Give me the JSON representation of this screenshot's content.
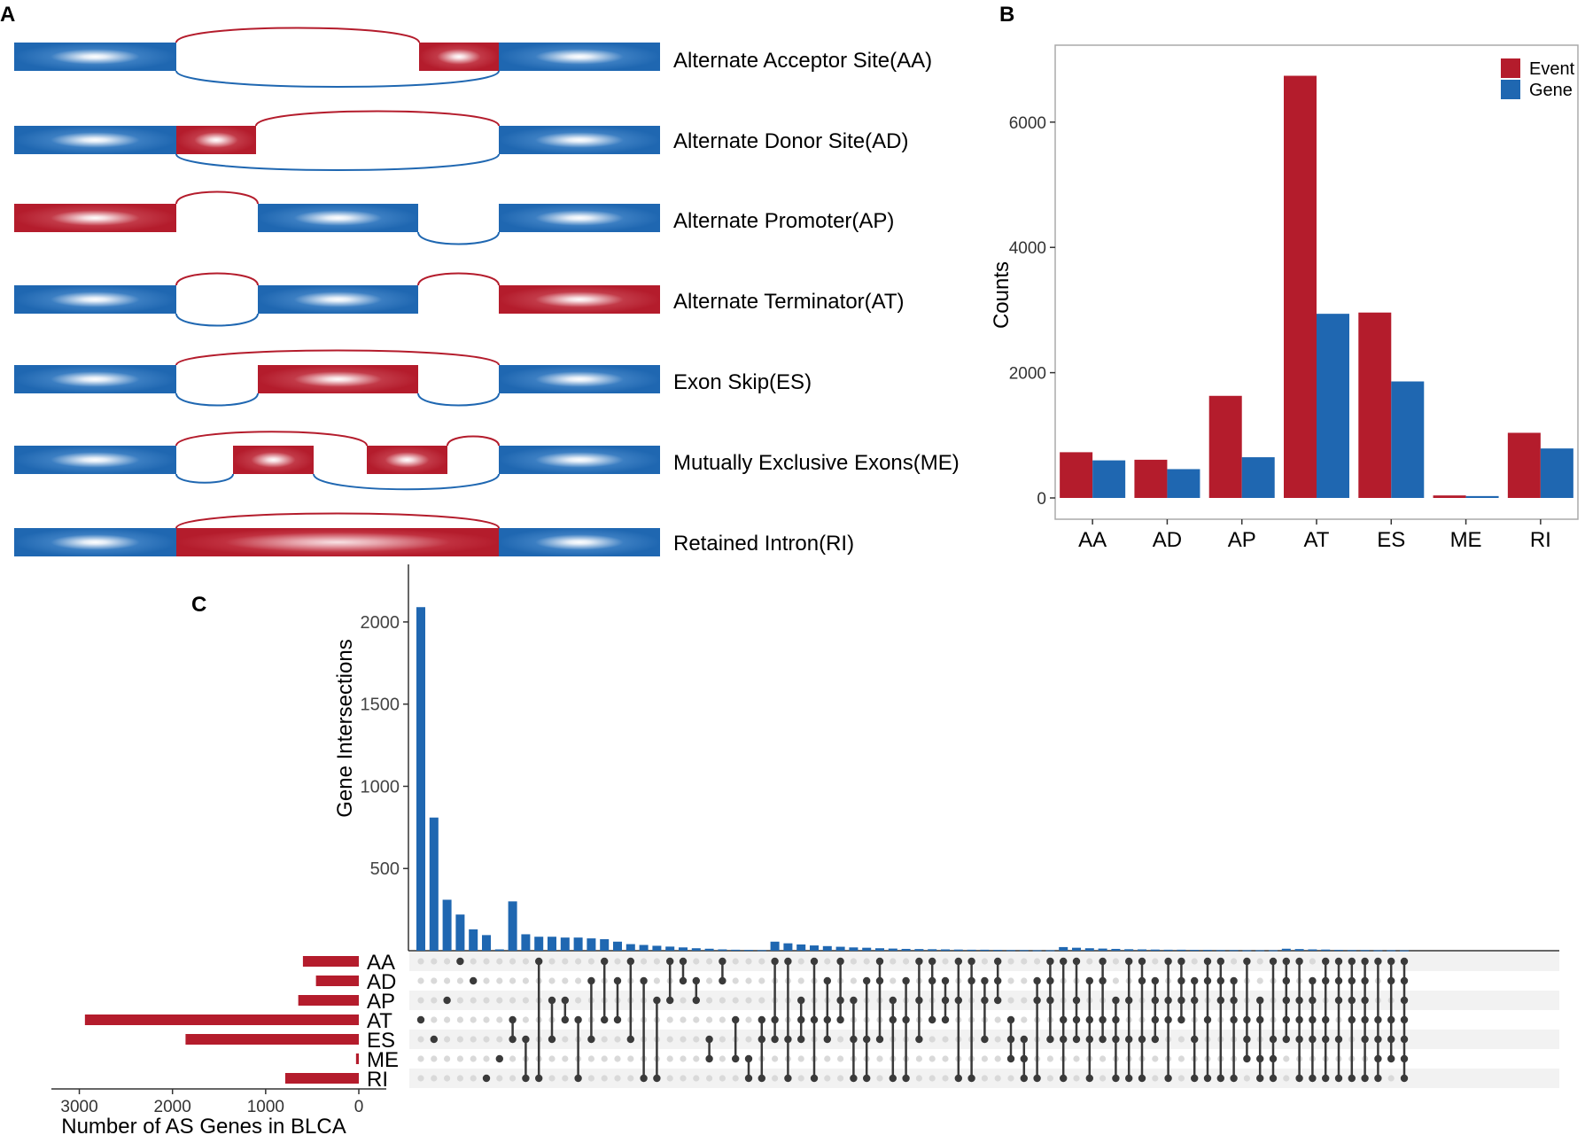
{
  "panel_labels": {
    "a": "A",
    "b": "B",
    "c": "C"
  },
  "colors": {
    "red": "#b41c2c",
    "blue": "#1f67b1",
    "dot_on": "#3a3a3a",
    "dot_off": "#d9d9d9",
    "stripe": "#f2f2f2",
    "axis": "#333333"
  },
  "panel_a": {
    "events": [
      {
        "label": "Alternate Acceptor Site(AA)"
      },
      {
        "label": "Alternate Donor Site(AD)"
      },
      {
        "label": "Alternate Promoter(AP)"
      },
      {
        "label": "Alternate Terminator(AT)"
      },
      {
        "label": "Exon Skip(ES)"
      },
      {
        "label": "Mutually Exclusive Exons(ME)"
      },
      {
        "label": "Retained Intron(RI)"
      }
    ]
  },
  "chart_data": [
    {
      "id": "B",
      "type": "bar",
      "categories": [
        "AA",
        "AD",
        "AP",
        "AT",
        "ES",
        "ME",
        "RI"
      ],
      "series": [
        {
          "name": "Event",
          "color": "#b41c2c",
          "values": [
            730,
            610,
            1630,
            6740,
            2960,
            40,
            1040
          ]
        },
        {
          "name": "Gene",
          "color": "#1f67b1",
          "values": [
            600,
            460,
            650,
            2940,
            1860,
            30,
            790
          ]
        }
      ],
      "ylabel": "Counts",
      "xlabel": "",
      "ylim": [
        0,
        7200
      ],
      "yticks": [
        0,
        2000,
        4000,
        6000
      ],
      "yticklabels": [
        "0",
        "2000",
        "4000",
        "6000"
      ],
      "legend": "top-right"
    },
    {
      "id": "C",
      "type": "upset",
      "sets": [
        "AA",
        "AD",
        "AP",
        "AT",
        "ES",
        "ME",
        "RI"
      ],
      "ylabel": "Gene Intersections",
      "yticks": [
        500,
        1000,
        1500,
        2000
      ],
      "yticklabels": [
        "500",
        "1000",
        "1500",
        "2000"
      ],
      "ylim": [
        0,
        2350
      ],
      "set_size_label": "Number of AS Genes in BLCA",
      "set_size_ticks": [
        3000,
        2000,
        1000,
        0
      ],
      "set_size_ticklabels": [
        "3000",
        "2000",
        "1000",
        "0"
      ],
      "set_size_max": 3300,
      "set_sizes": [
        600,
        460,
        650,
        2940,
        1860,
        30,
        790
      ],
      "intersections": [
        {
          "sets": [
            3
          ],
          "size": 2090
        },
        {
          "sets": [
            4
          ],
          "size": 810
        },
        {
          "sets": [
            2
          ],
          "size": 310
        },
        {
          "sets": [
            0
          ],
          "size": 220
        },
        {
          "sets": [
            1
          ],
          "size": 130
        },
        {
          "sets": [
            6
          ],
          "size": 95
        },
        {
          "sets": [
            5
          ],
          "size": 8
        },
        {
          "sets": [
            3,
            4
          ],
          "size": 300
        },
        {
          "sets": [
            4,
            6
          ],
          "size": 100
        },
        {
          "sets": [
            0,
            6
          ],
          "size": 85
        },
        {
          "sets": [
            2,
            4
          ],
          "size": 85
        },
        {
          "sets": [
            2,
            3
          ],
          "size": 80
        },
        {
          "sets": [
            3,
            6
          ],
          "size": 80
        },
        {
          "sets": [
            1,
            4
          ],
          "size": 75
        },
        {
          "sets": [
            0,
            3
          ],
          "size": 70
        },
        {
          "sets": [
            1,
            3
          ],
          "size": 55
        },
        {
          "sets": [
            0,
            4
          ],
          "size": 40
        },
        {
          "sets": [
            1,
            6
          ],
          "size": 35
        },
        {
          "sets": [
            2,
            6
          ],
          "size": 30
        },
        {
          "sets": [
            0,
            2
          ],
          "size": 25
        },
        {
          "sets": [
            0,
            1
          ],
          "size": 20
        },
        {
          "sets": [
            1,
            2
          ],
          "size": 15
        },
        {
          "sets": [
            4,
            5
          ],
          "size": 12
        },
        {
          "sets": [
            0,
            1
          ],
          "size": 8
        },
        {
          "sets": [
            3,
            5
          ],
          "size": 6
        },
        {
          "sets": [
            5,
            6
          ],
          "size": 5
        },
        {
          "sets": [
            3,
            4,
            6
          ],
          "size": 4
        },
        {
          "sets": [
            0,
            3,
            4
          ],
          "size": 55
        },
        {
          "sets": [
            0,
            4,
            6
          ],
          "size": 45
        },
        {
          "sets": [
            2,
            3,
            4
          ],
          "size": 38
        },
        {
          "sets": [
            0,
            3,
            6
          ],
          "size": 32
        },
        {
          "sets": [
            1,
            3,
            4
          ],
          "size": 28
        },
        {
          "sets": [
            0,
            2,
            3
          ],
          "size": 24
        },
        {
          "sets": [
            2,
            4,
            6
          ],
          "size": 20
        },
        {
          "sets": [
            1,
            4,
            6
          ],
          "size": 18
        },
        {
          "sets": [
            0,
            1,
            4
          ],
          "size": 15
        },
        {
          "sets": [
            2,
            3,
            6
          ],
          "size": 13
        },
        {
          "sets": [
            1,
            3,
            6
          ],
          "size": 11
        },
        {
          "sets": [
            0,
            2,
            4
          ],
          "size": 10
        },
        {
          "sets": [
            0,
            1,
            3
          ],
          "size": 9
        },
        {
          "sets": [
            1,
            2,
            3
          ],
          "size": 8
        },
        {
          "sets": [
            0,
            2,
            6
          ],
          "size": 7
        },
        {
          "sets": [
            0,
            1,
            6
          ],
          "size": 6
        },
        {
          "sets": [
            1,
            2,
            4
          ],
          "size": 6
        },
        {
          "sets": [
            0,
            1,
            2
          ],
          "size": 5
        },
        {
          "sets": [
            3,
            4,
            5
          ],
          "size": 4
        },
        {
          "sets": [
            4,
            5,
            6
          ],
          "size": 4
        },
        {
          "sets": [
            1,
            2,
            6
          ],
          "size": 3
        },
        {
          "sets": [
            0,
            1,
            2,
            4
          ],
          "size": 3
        },
        {
          "sets": [
            0,
            3,
            4,
            6
          ],
          "size": 22
        },
        {
          "sets": [
            0,
            2,
            3,
            4
          ],
          "size": 18
        },
        {
          "sets": [
            1,
            3,
            4,
            6
          ],
          "size": 15
        },
        {
          "sets": [
            0,
            1,
            3,
            4
          ],
          "size": 13
        },
        {
          "sets": [
            2,
            3,
            4,
            6
          ],
          "size": 11
        },
        {
          "sets": [
            0,
            2,
            4,
            6
          ],
          "size": 9
        },
        {
          "sets": [
            0,
            1,
            4,
            6
          ],
          "size": 8
        },
        {
          "sets": [
            1,
            2,
            3,
            4
          ],
          "size": 7
        },
        {
          "sets": [
            0,
            2,
            3,
            6
          ],
          "size": 6
        },
        {
          "sets": [
            0,
            1,
            2,
            3
          ],
          "size": 6
        },
        {
          "sets": [
            1,
            2,
            4,
            6
          ],
          "size": 5
        },
        {
          "sets": [
            0,
            1,
            3,
            6
          ],
          "size": 5
        },
        {
          "sets": [
            0,
            1,
            2,
            6
          ],
          "size": 4
        },
        {
          "sets": [
            1,
            2,
            3,
            6
          ],
          "size": 4
        },
        {
          "sets": [
            0,
            3,
            4,
            5
          ],
          "size": 3
        },
        {
          "sets": [
            2,
            3,
            5,
            6
          ],
          "size": 3
        },
        {
          "sets": [
            0,
            4,
            5,
            6
          ],
          "size": 3
        },
        {
          "sets": [
            0,
            1,
            2,
            3,
            4
          ],
          "size": 12
        },
        {
          "sets": [
            0,
            2,
            3,
            4,
            6
          ],
          "size": 10
        },
        {
          "sets": [
            1,
            2,
            3,
            4,
            6
          ],
          "size": 8
        },
        {
          "sets": [
            0,
            1,
            3,
            4,
            6
          ],
          "size": 7
        },
        {
          "sets": [
            0,
            1,
            2,
            4,
            6
          ],
          "size": 5
        },
        {
          "sets": [
            0,
            1,
            2,
            3,
            6
          ],
          "size": 4
        },
        {
          "sets": [
            0,
            1,
            2,
            3,
            4,
            6
          ],
          "size": 4
        },
        {
          "sets": [
            0,
            3,
            4,
            5,
            6
          ],
          "size": 3
        },
        {
          "sets": [
            0,
            1,
            3,
            4,
            5
          ],
          "size": 3
        },
        {
          "sets": [
            0,
            1,
            2,
            3,
            4,
            5,
            6
          ],
          "size": 2
        }
      ]
    }
  ]
}
